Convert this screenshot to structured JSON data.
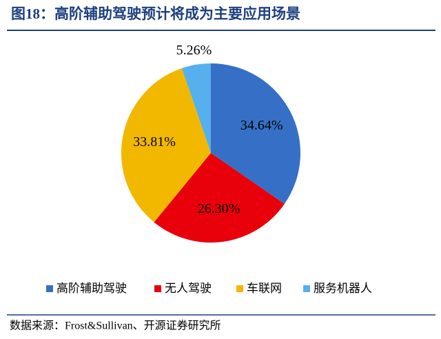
{
  "chart_data": {
    "type": "pie",
    "title": "图18：高阶辅助驾驶预计将成为主要应用场景",
    "categories": [
      "高阶辅助驾驶",
      "无人驾驶",
      "车联网",
      "服务机器人"
    ],
    "values": [
      34.64,
      26.3,
      33.81,
      5.26
    ],
    "value_labels": [
      "34.64%",
      "26.30%",
      "33.81%",
      "5.26%"
    ],
    "colors": [
      "#3670c6",
      "#e8000b",
      "#f2b800",
      "#56b0ee"
    ],
    "legend": "bottom",
    "source": "数据来源：Frost&Sullivan、开源证券研究所"
  }
}
